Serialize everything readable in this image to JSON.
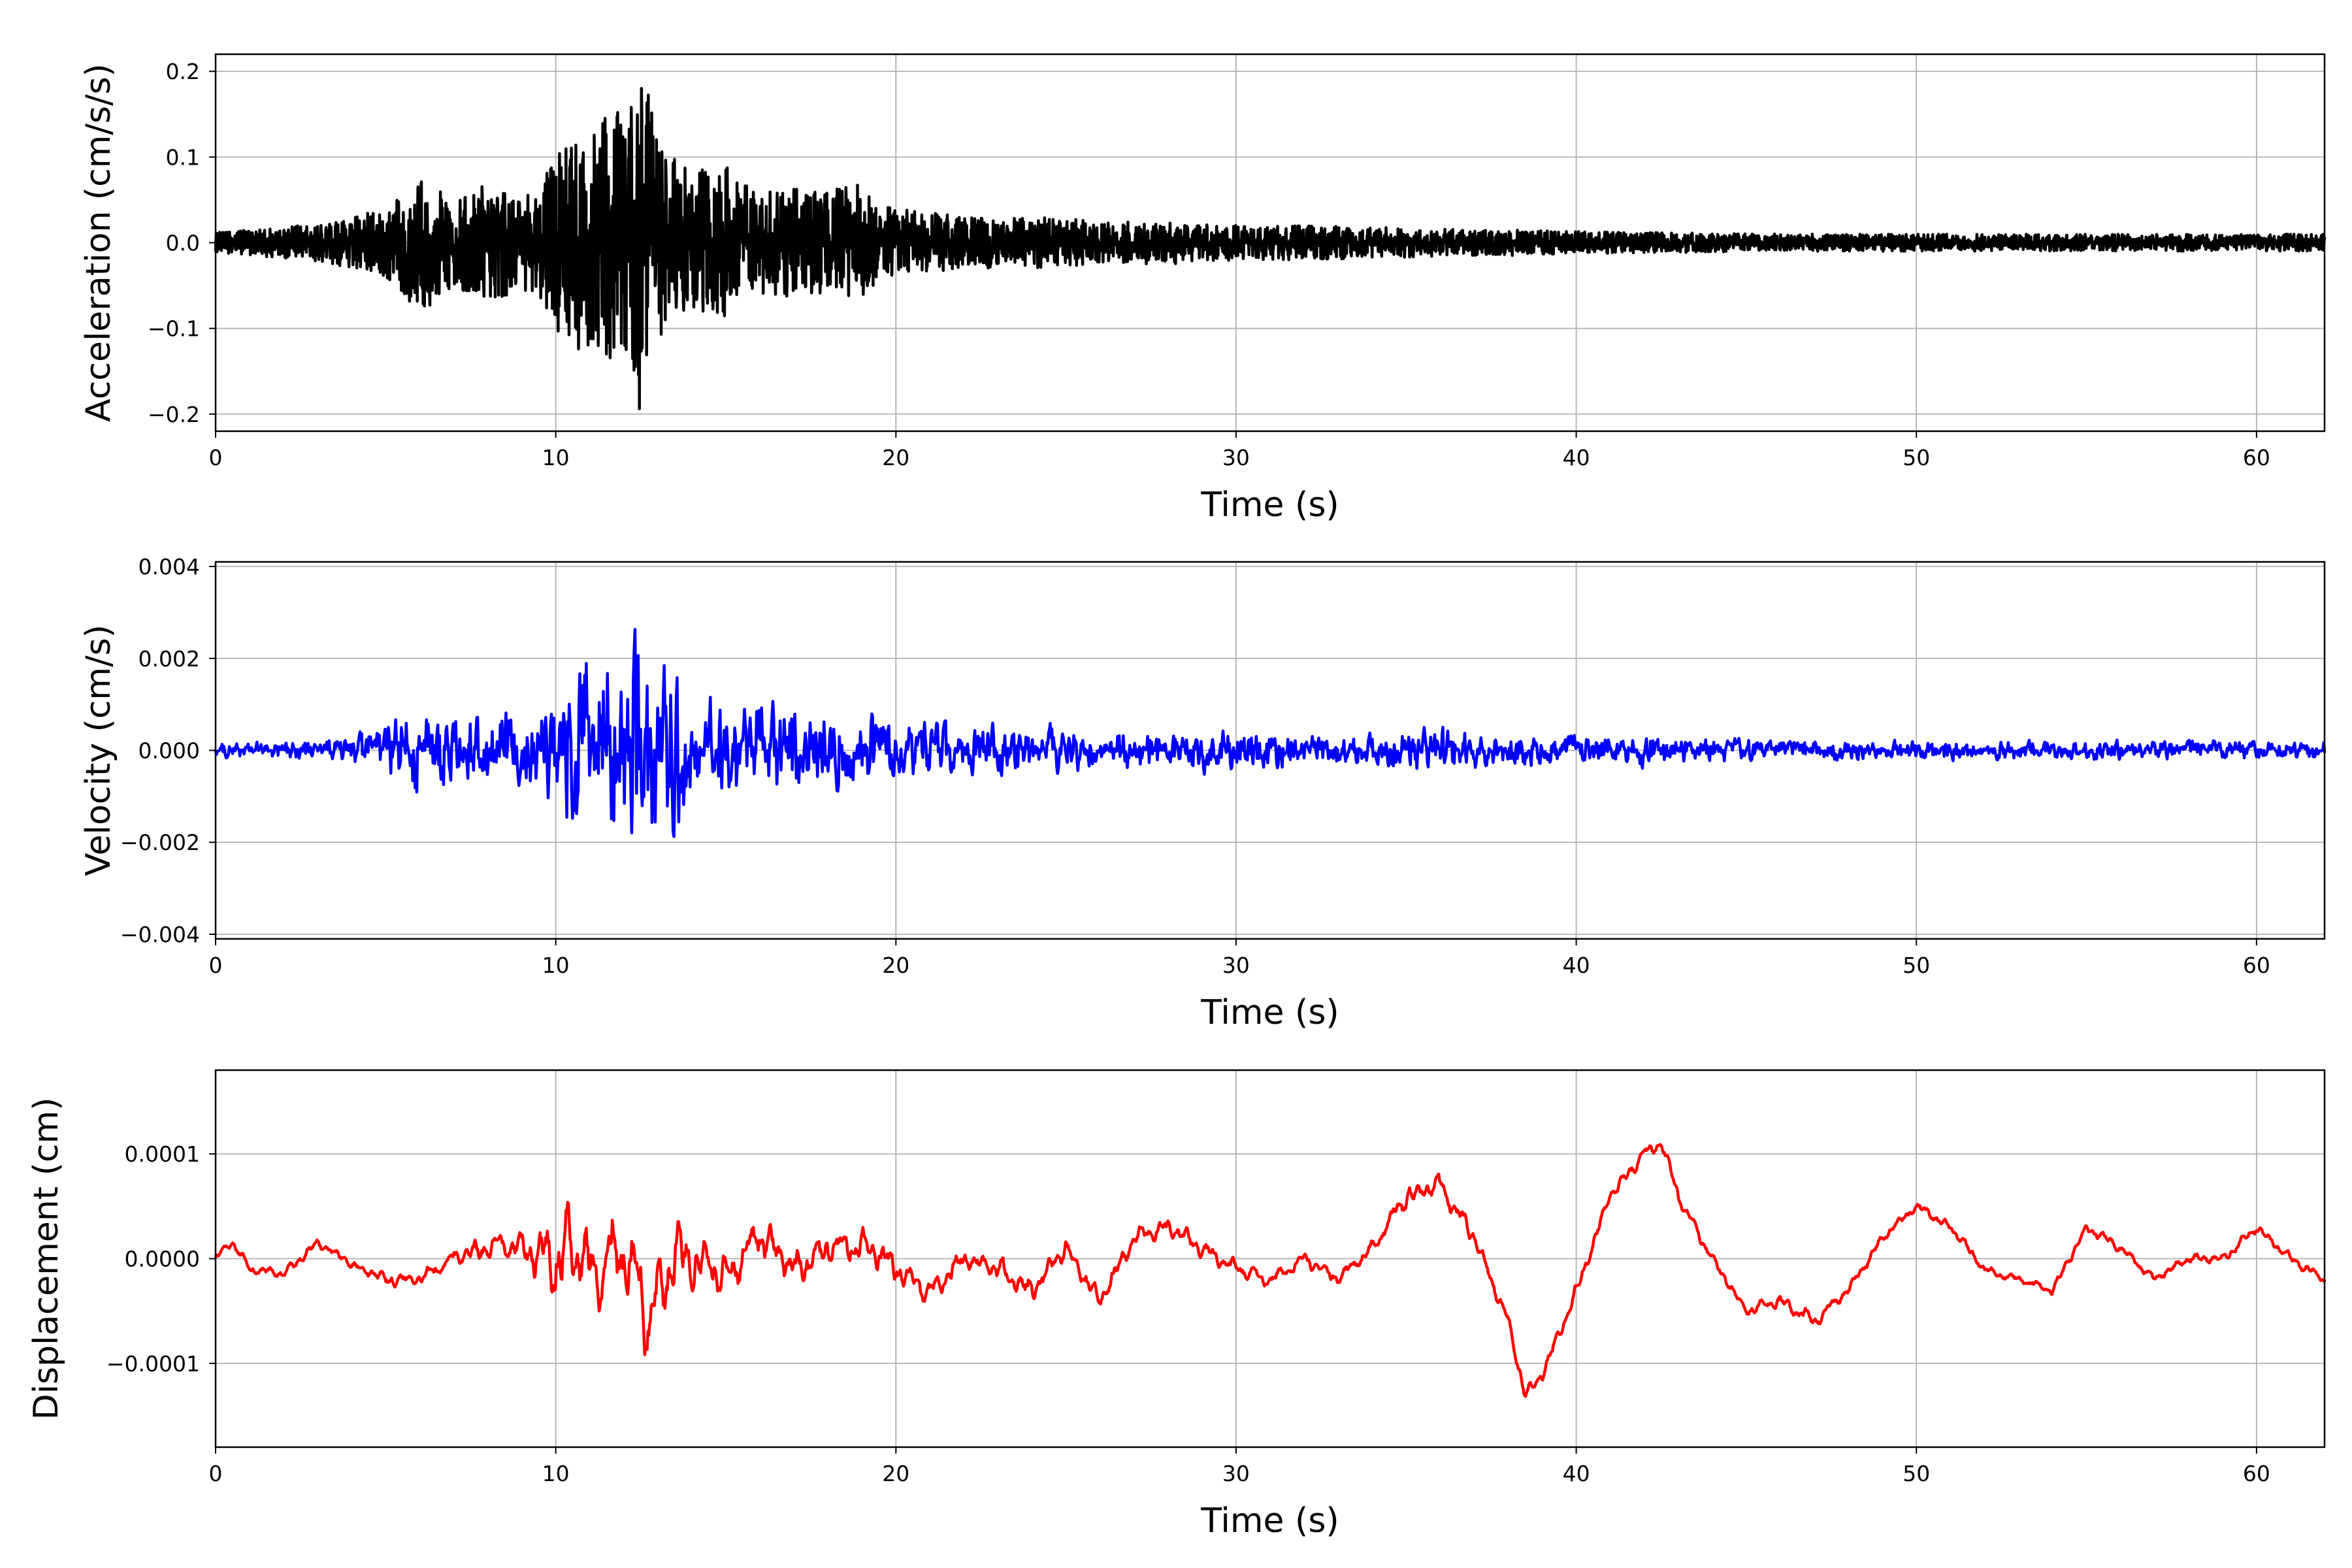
{
  "chart_data": [
    {
      "type": "line",
      "xlabel": "Time (s)",
      "ylabel": "Acceleration (cm/s/s)",
      "xlim": [
        0,
        62
      ],
      "ylim": [
        -0.22,
        0.22
      ],
      "xticks": [
        "0",
        "10",
        "20",
        "30",
        "40",
        "50",
        "60"
      ],
      "yticks": [
        "−0.2",
        "−0.1",
        "0.0",
        "0.1",
        "0.2"
      ],
      "ytick_values": [
        -0.2,
        -0.1,
        0.0,
        0.1,
        0.2
      ],
      "grid": true,
      "color": "#000000",
      "series": [
        {
          "x": [
            0,
            1,
            2,
            3,
            4,
            5,
            5.5,
            6,
            7,
            8,
            9,
            9.5,
            10,
            10.5,
            11,
            11.5,
            12,
            12.3,
            12.5,
            13,
            13.5,
            14,
            15,
            15.5,
            16,
            17,
            18,
            19,
            19.5,
            20,
            21,
            22,
            23,
            24,
            25,
            26,
            27,
            28,
            29,
            30,
            32,
            34,
            36,
            38,
            40,
            42,
            44,
            46,
            48,
            50,
            52,
            54,
            56,
            58,
            60,
            62
          ],
          "envelope": [
            0.012,
            0.015,
            0.018,
            0.022,
            0.03,
            0.04,
            0.06,
            0.085,
            0.05,
            0.07,
            0.055,
            0.065,
            0.1,
            0.13,
            0.12,
            0.16,
            0.15,
            0.19,
            0.2,
            0.14,
            0.1,
            0.08,
            0.1,
            0.07,
            0.06,
            0.065,
            0.06,
            0.07,
            0.045,
            0.04,
            0.035,
            0.03,
            0.03,
            0.03,
            0.028,
            0.025,
            0.025,
            0.025,
            0.023,
            0.02,
            0.02,
            0.018,
            0.016,
            0.015,
            0.013,
            0.012,
            0.011,
            0.01,
            0.01,
            0.01,
            0.01,
            0.01,
            0.01,
            0.01,
            0.01,
            0.01
          ]
        }
      ]
    },
    {
      "type": "line",
      "xlabel": "Time (s)",
      "ylabel": "Velocity (cm/s)",
      "xlim": [
        0,
        62
      ],
      "ylim": [
        -0.0041,
        0.0041
      ],
      "xticks": [
        "0",
        "10",
        "20",
        "30",
        "40",
        "50",
        "60"
      ],
      "yticks": [
        "−0.004",
        "−0.002",
        "0.000",
        "0.002",
        "0.004"
      ],
      "ytick_values": [
        -0.004,
        -0.002,
        0.0,
        0.002,
        0.004
      ],
      "grid": true,
      "color": "#0000ff",
      "series": [
        {
          "x": [
            0,
            2,
            4,
            5,
            6,
            7,
            8,
            9,
            10,
            10.5,
            11,
            11.5,
            12,
            12.4,
            12.8,
            13.5,
            14,
            15,
            16,
            17,
            18,
            19,
            19.5,
            20,
            22,
            24,
            26,
            28,
            30,
            32,
            34,
            36,
            38,
            40,
            42,
            44,
            46,
            48,
            50,
            52,
            54,
            56,
            58,
            60,
            62
          ],
          "envelope": [
            0.0002,
            0.0003,
            0.0004,
            0.0008,
            0.0016,
            0.0009,
            0.0012,
            0.0011,
            0.0018,
            0.0033,
            0.0028,
            0.0032,
            0.0031,
            0.0036,
            0.0032,
            0.0027,
            0.0017,
            0.0018,
            0.0016,
            0.0014,
            0.0012,
            0.0012,
            0.0011,
            0.0009,
            0.0008,
            0.0007,
            0.0007,
            0.0006,
            0.0007,
            0.0005,
            0.0005,
            0.0007,
            0.0005,
            0.0004,
            0.0005,
            0.0004,
            0.0003,
            0.0003,
            0.0003,
            0.0003,
            0.0003,
            0.0003,
            0.0003,
            0.0003,
            0.0003
          ]
        }
      ]
    },
    {
      "type": "line",
      "xlabel": "Time (s)",
      "ylabel": "Displacement (cm)",
      "xlim": [
        0,
        62
      ],
      "ylim": [
        -0.00018,
        0.00018
      ],
      "xticks": [
        "0",
        "10",
        "20",
        "30",
        "40",
        "50",
        "60"
      ],
      "yticks": [
        "−0.0001",
        "0.0000",
        "0.0001"
      ],
      "ytick_values": [
        -0.0001,
        0.0,
        0.0001
      ],
      "grid": true,
      "color": "#ff0000",
      "series": [
        {
          "x": [
            0,
            0.5,
            1,
            2,
            3,
            4,
            5,
            6,
            7,
            8,
            9,
            10,
            10.5,
            11,
            12,
            12.8,
            13.5,
            14,
            15,
            16,
            17,
            18,
            19,
            20,
            21,
            22,
            23,
            24,
            25,
            26,
            27,
            28,
            29,
            30,
            31,
            32,
            33,
            34,
            35,
            36,
            37,
            38,
            38.5,
            39,
            40,
            41,
            42,
            42.5,
            43,
            44,
            45,
            46,
            47,
            48,
            49,
            50,
            51,
            52,
            53,
            54,
            55,
            56,
            57,
            58,
            59,
            60,
            61,
            62
          ],
          "y": [
            0.0,
            1.5e-05,
            -1e-05,
            -1.5e-05,
            1.5e-05,
            -5e-06,
            -2e-05,
            -2e-05,
            0.0,
            1e-05,
            1e-05,
            0.0,
            1.5e-05,
            -1e-05,
            1e-05,
            -6e-05,
            5e-06,
            0.0,
            -1.5e-05,
            2e-05,
            -1e-05,
            1e-05,
            1.5e-05,
            -1e-05,
            -3e-05,
            0.0,
            -1e-05,
            -3e-05,
            1e-05,
            -4e-05,
            2e-05,
            3e-05,
            1e-05,
            -1e-05,
            -2e-05,
            0.0,
            -2e-05,
            1e-05,
            6e-05,
            7e-05,
            2e-05,
            -6e-05,
            -0.00013,
            -0.00011,
            -3e-05,
            6e-05,
            0.0001,
            0.00011,
            6e-05,
            0.0,
            -5e-05,
            -4e-05,
            -6e-05,
            -3e-05,
            2e-05,
            5e-05,
            3e-05,
            -1e-05,
            -2e-05,
            -3e-05,
            3e-05,
            1e-05,
            -2e-05,
            0.0,
            0.0,
            3e-05,
            0.0,
            -2e-05
          ],
          "detail_amp": [
            5e-06,
            5e-06,
            5e-06,
            6e-06,
            6e-06,
            6e-06,
            8e-06,
            8e-06,
            1e-05,
            1.5e-05,
            1.8e-05,
            5e-05,
            5e-05,
            5e-05,
            5e-05,
            5e-05,
            4e-05,
            3e-05,
            2.5e-05,
            2.5e-05,
            2.2e-05,
            2e-05,
            2e-05,
            1.8e-05,
            1.5e-05,
            1.5e-05,
            1.5e-05,
            1.5e-05,
            1.2e-05,
            1.2e-05,
            1e-05,
            1e-05,
            1e-05,
            1e-05,
            8e-06,
            8e-06,
            8e-06,
            8e-06,
            1.5e-05,
            1.5e-05,
            1e-05,
            8e-06,
            8e-06,
            8e-06,
            8e-06,
            8e-06,
            8e-06,
            8e-06,
            8e-06,
            6e-06,
            6e-06,
            8e-06,
            8e-06,
            6e-06,
            6e-06,
            6e-06,
            6e-06,
            5e-06,
            5e-06,
            5e-06,
            6e-06,
            5e-06,
            5e-06,
            6e-06,
            6e-06,
            6e-06,
            6e-06,
            6e-06
          ]
        }
      ]
    }
  ]
}
